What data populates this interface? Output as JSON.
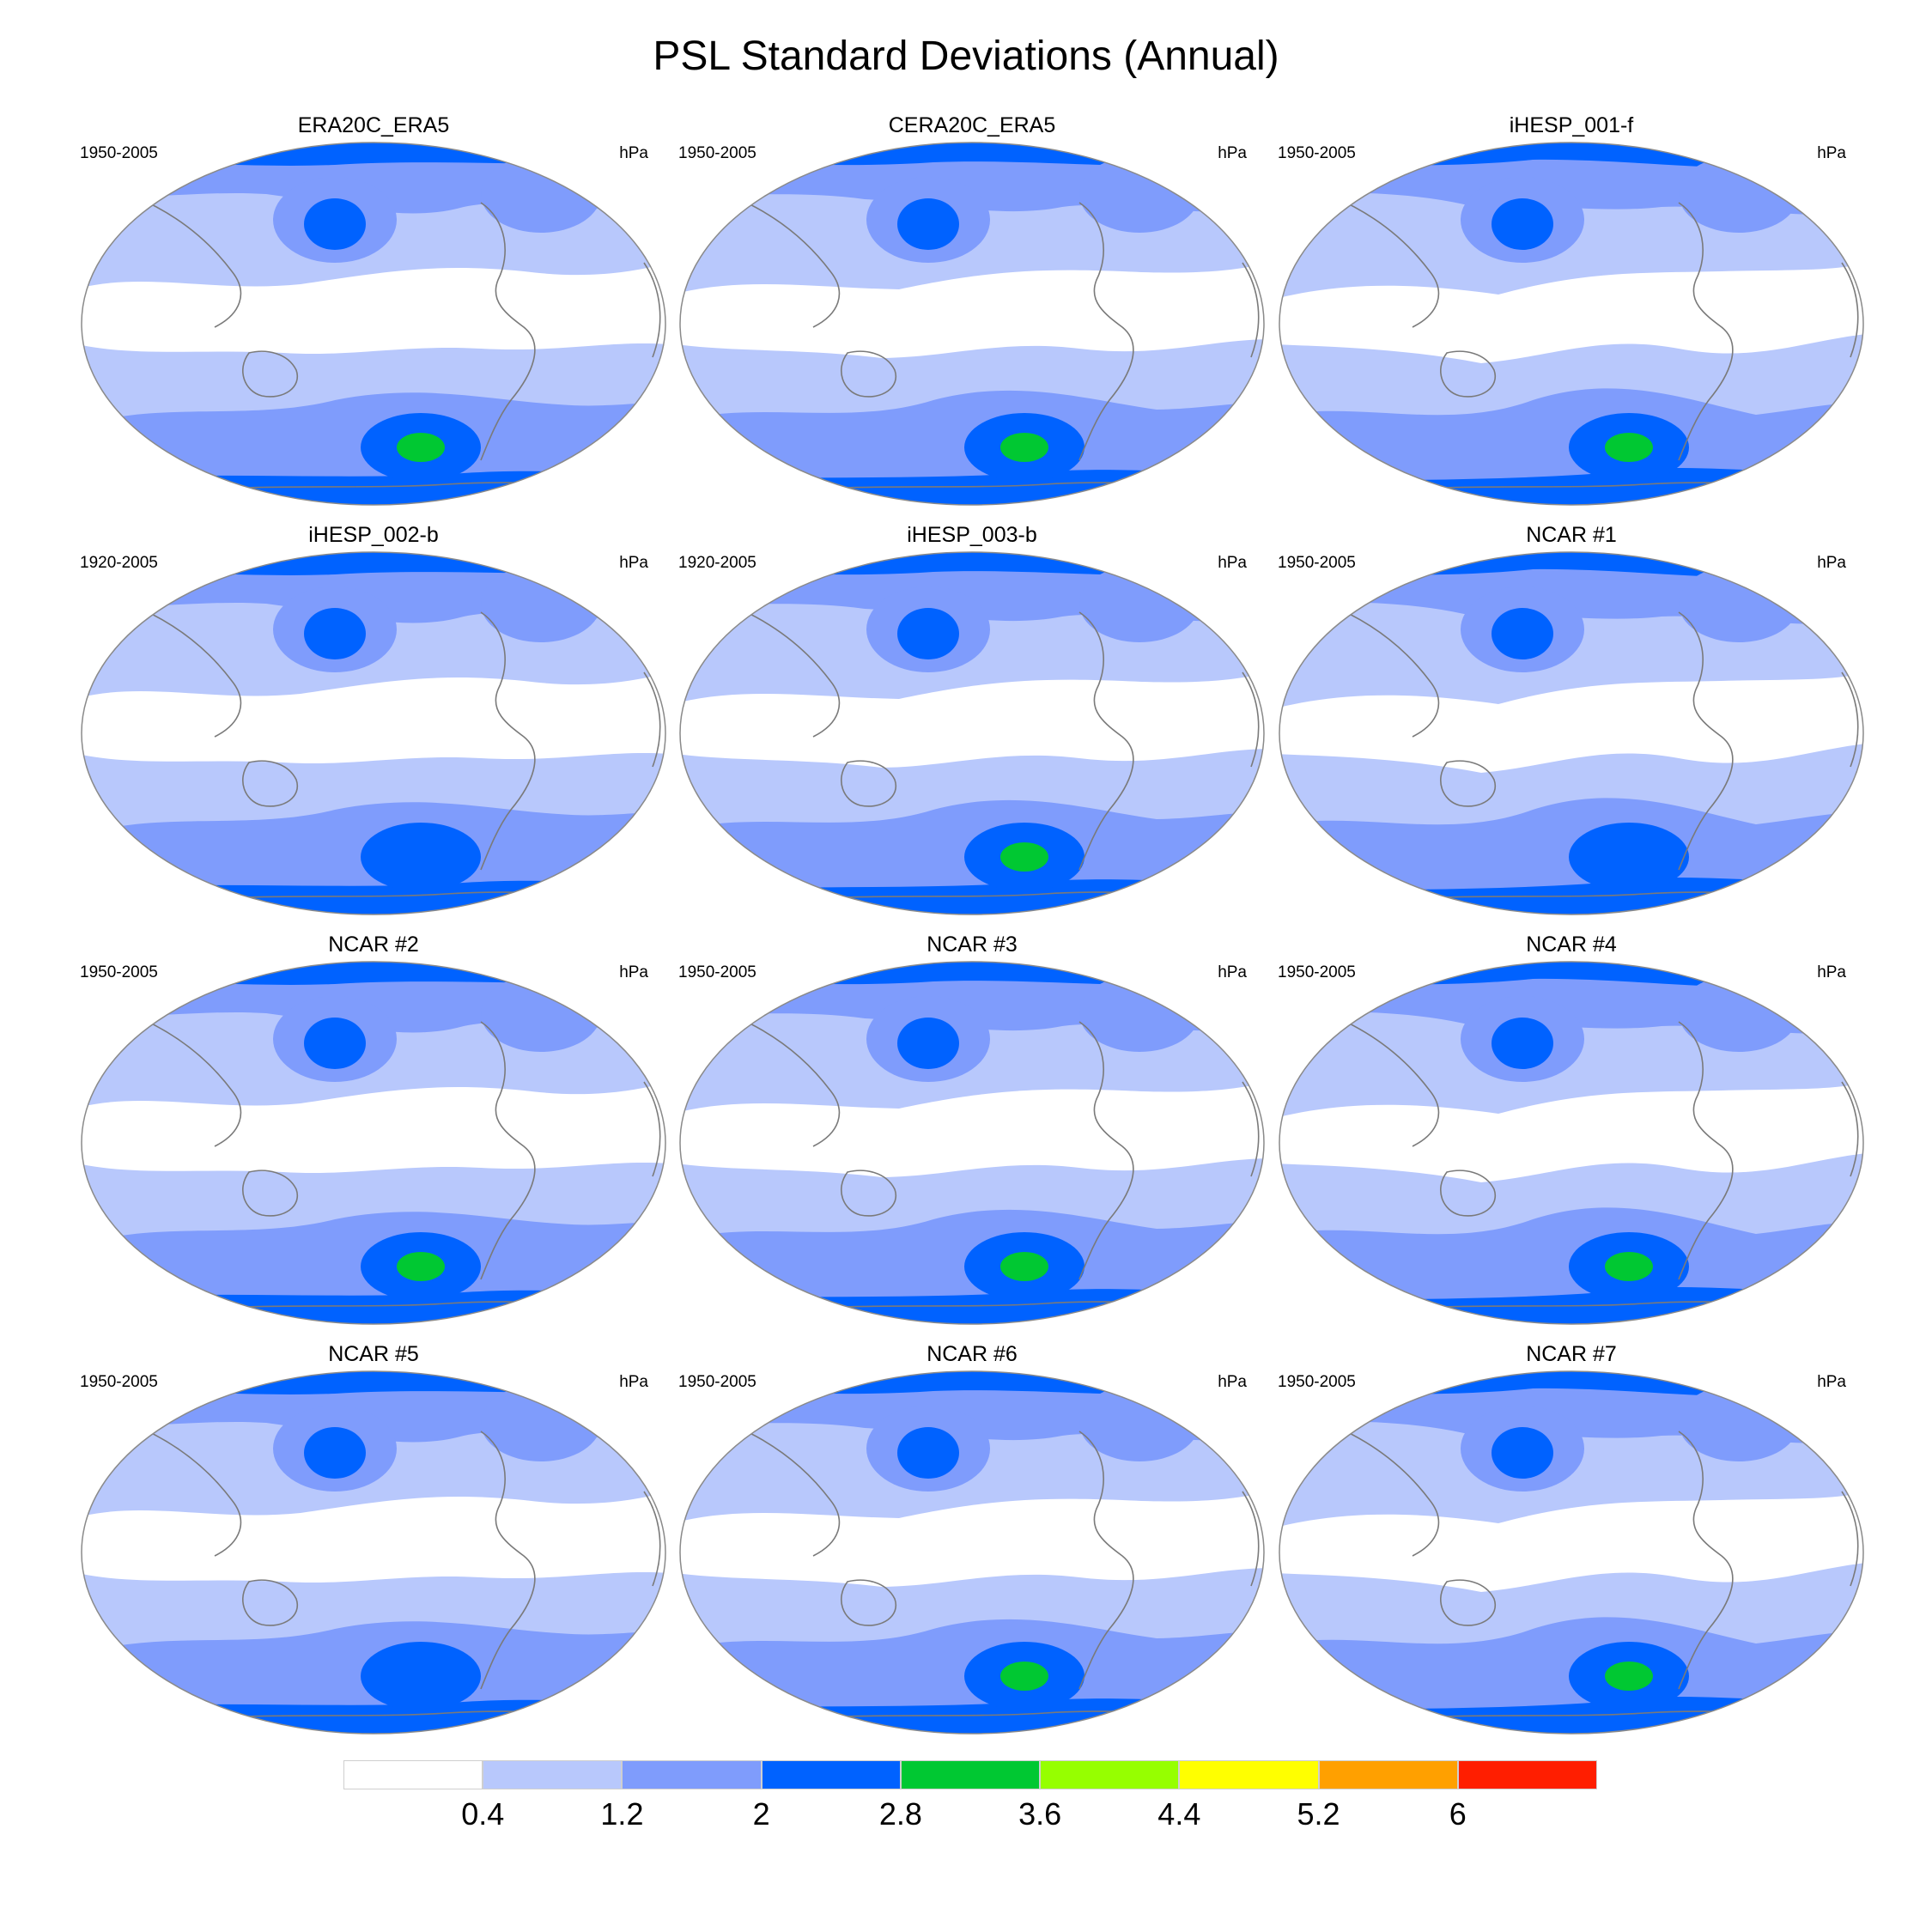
{
  "title": "PSL Standard Deviations (Annual)",
  "units": "hPa",
  "colors": {
    "level0": "#ffffff",
    "level1": "#b8c8fc",
    "level2": "#7f9cfc",
    "level3": "#0062ff",
    "level4": "#00c832",
    "coast": "#7a7a7a",
    "frame": "#8a8a8a"
  },
  "panels": [
    {
      "title": "ERA20C_ERA5",
      "period": "1950-2005",
      "units": "hPa",
      "max_level": 4
    },
    {
      "title": "CERA20C_ERA5",
      "period": "1950-2005",
      "units": "hPa",
      "max_level": 4
    },
    {
      "title": "iHESP_001-f",
      "period": "1950-2005",
      "units": "hPa",
      "max_level": 4
    },
    {
      "title": "iHESP_002-b",
      "period": "1920-2005",
      "units": "hPa",
      "max_level": 3
    },
    {
      "title": "iHESP_003-b",
      "period": "1920-2005",
      "units": "hPa",
      "max_level": 4
    },
    {
      "title": "NCAR #1",
      "period": "1950-2005",
      "units": "hPa",
      "max_level": 3
    },
    {
      "title": "NCAR #2",
      "period": "1950-2005",
      "units": "hPa",
      "max_level": 4
    },
    {
      "title": "NCAR #3",
      "period": "1950-2005",
      "units": "hPa",
      "max_level": 4
    },
    {
      "title": "NCAR #4",
      "period": "1950-2005",
      "units": "hPa",
      "max_level": 4
    },
    {
      "title": "NCAR #5",
      "period": "1950-2005",
      "units": "hPa",
      "max_level": 3
    },
    {
      "title": "NCAR #6",
      "period": "1950-2005",
      "units": "hPa",
      "max_level": 4
    },
    {
      "title": "NCAR #7",
      "period": "1950-2005",
      "units": "hPa",
      "max_level": 4
    }
  ],
  "colorbar": {
    "colors": [
      "#ffffff",
      "#b8c8fc",
      "#7f9cfc",
      "#0062ff",
      "#00c832",
      "#96ff00",
      "#ffff00",
      "#ffa000",
      "#ff1e00"
    ],
    "labels": [
      "0.4",
      "1.2",
      "2",
      "2.8",
      "3.6",
      "4.4",
      "5.2",
      "6"
    ]
  }
}
